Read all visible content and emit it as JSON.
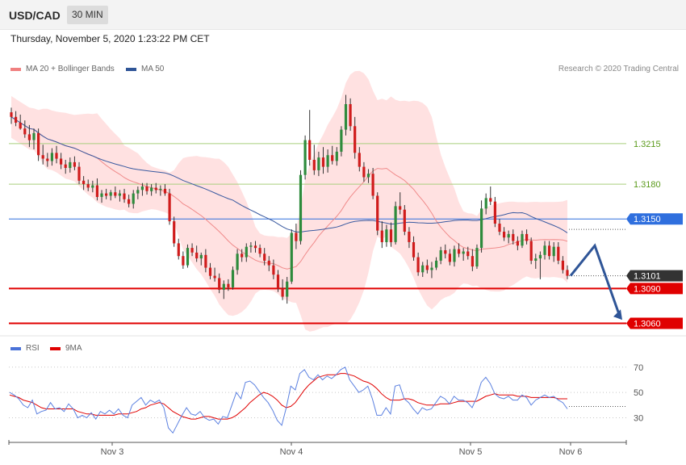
{
  "header": {
    "symbol": "USD/CAD",
    "timeframe": "30 MIN"
  },
  "datetime": "Thursday, November 5, 2020 1:23:22 PM CET",
  "legend": {
    "items": [
      {
        "label": "MA 20 + Bollinger Bands",
        "color": "#f08080"
      },
      {
        "label": "MA 50",
        "color": "#2f5597"
      }
    ],
    "rsi_items": [
      {
        "label": "RSI",
        "color": "#4a72d8"
      },
      {
        "label": "9MA",
        "color": "#e00000"
      }
    ]
  },
  "credit": "Research © 2020 Trading Central",
  "chart_data": [
    {
      "type": "candlestick",
      "symbol": "USD/CAD",
      "ylim": [
        1.3052,
        1.3272
      ],
      "x_labels": [
        "Nov 3",
        "Nov 4",
        "Nov 5",
        "Nov 6"
      ],
      "levels": [
        {
          "label": "1.3215",
          "value": 1.3215,
          "style": "resistance",
          "color": "#7fb539"
        },
        {
          "label": "1.3180",
          "value": 1.318,
          "style": "resistance",
          "color": "#7fb539"
        },
        {
          "label": "1.3150",
          "value": 1.315,
          "style": "pivot",
          "color": "#2f6fde"
        },
        {
          "label": "1.3101",
          "value": 1.3101,
          "style": "last-price",
          "color": "#333333"
        },
        {
          "label": "1.3090",
          "value": 1.309,
          "style": "support",
          "color": "#e00000"
        },
        {
          "label": "1.3060",
          "value": 1.306,
          "style": "support",
          "color": "#e00000"
        }
      ],
      "ohlc": [
        [
          1.3242,
          1.3246,
          1.3232,
          1.3238
        ],
        [
          1.3238,
          1.3243,
          1.323,
          1.3233
        ],
        [
          1.3233,
          1.324,
          1.3227,
          1.3228
        ],
        [
          1.3228,
          1.3235,
          1.322,
          1.3223
        ],
        [
          1.3223,
          1.3231,
          1.3212,
          1.3218
        ],
        [
          1.3218,
          1.3228,
          1.321,
          1.3224
        ],
        [
          1.3224,
          1.3228,
          1.32,
          1.3205
        ],
        [
          1.3205,
          1.3214,
          1.3197,
          1.3202
        ],
        [
          1.3202,
          1.3207,
          1.3195,
          1.32
        ],
        [
          1.32,
          1.3211,
          1.3196,
          1.3207
        ],
        [
          1.3207,
          1.3213,
          1.3198,
          1.3202
        ],
        [
          1.3202,
          1.3207,
          1.3193,
          1.3197
        ],
        [
          1.3197,
          1.3201,
          1.3189,
          1.3194
        ],
        [
          1.3194,
          1.3203,
          1.319,
          1.3199
        ],
        [
          1.3199,
          1.3204,
          1.3192,
          1.3195
        ],
        [
          1.3195,
          1.3199,
          1.318,
          1.3183
        ],
        [
          1.3183,
          1.3187,
          1.3175,
          1.318
        ],
        [
          1.318,
          1.3184,
          1.3174,
          1.3177
        ],
        [
          1.3177,
          1.3183,
          1.3173,
          1.3179
        ],
        [
          1.3179,
          1.3185,
          1.3166,
          1.3169
        ],
        [
          1.3169,
          1.3175,
          1.3164,
          1.3172
        ],
        [
          1.3172,
          1.3176,
          1.3167,
          1.317
        ],
        [
          1.317,
          1.3175,
          1.3166,
          1.3173
        ],
        [
          1.3173,
          1.3178,
          1.3168,
          1.317
        ],
        [
          1.317,
          1.3175,
          1.3165,
          1.3172
        ],
        [
          1.3172,
          1.3176,
          1.3164,
          1.3167
        ],
        [
          1.3167,
          1.3171,
          1.316,
          1.3163
        ],
        [
          1.3163,
          1.3175,
          1.3159,
          1.3172
        ],
        [
          1.3172,
          1.3178,
          1.3167,
          1.3175
        ],
        [
          1.3175,
          1.3181,
          1.317,
          1.3178
        ],
        [
          1.3178,
          1.3181,
          1.3171,
          1.3174
        ],
        [
          1.3174,
          1.318,
          1.317,
          1.3177
        ],
        [
          1.3177,
          1.3181,
          1.3172,
          1.3175
        ],
        [
          1.3175,
          1.3179,
          1.317,
          1.3176
        ],
        [
          1.3176,
          1.318,
          1.317,
          1.3172
        ],
        [
          1.3172,
          1.3176,
          1.3145,
          1.3148
        ],
        [
          1.3148,
          1.3152,
          1.3126,
          1.3129
        ],
        [
          1.3129,
          1.3133,
          1.3115,
          1.3118
        ],
        [
          1.3118,
          1.3122,
          1.3107,
          1.311
        ],
        [
          1.311,
          1.3128,
          1.3108,
          1.3125
        ],
        [
          1.3125,
          1.3129,
          1.3118,
          1.3121
        ],
        [
          1.3121,
          1.3127,
          1.3113,
          1.3116
        ],
        [
          1.3116,
          1.3121,
          1.311,
          1.3119
        ],
        [
          1.3119,
          1.3124,
          1.3104,
          1.3108
        ],
        [
          1.3108,
          1.3112,
          1.3098,
          1.3101
        ],
        [
          1.3101,
          1.3108,
          1.3096,
          1.3099
        ],
        [
          1.3099,
          1.3103,
          1.3086,
          1.3089
        ],
        [
          1.3089,
          1.3097,
          1.3081,
          1.3094
        ],
        [
          1.3094,
          1.3098,
          1.3088,
          1.3091
        ],
        [
          1.3091,
          1.3109,
          1.3089,
          1.3106
        ],
        [
          1.3106,
          1.3124,
          1.3102,
          1.312
        ],
        [
          1.312,
          1.3124,
          1.3113,
          1.3117
        ],
        [
          1.3117,
          1.3129,
          1.3113,
          1.3126
        ],
        [
          1.3126,
          1.313,
          1.3121,
          1.3127
        ],
        [
          1.3127,
          1.3131,
          1.3121,
          1.3125
        ],
        [
          1.3125,
          1.3128,
          1.3117,
          1.312
        ],
        [
          1.312,
          1.3125,
          1.311,
          1.3114
        ],
        [
          1.3114,
          1.3118,
          1.3105,
          1.311
        ],
        [
          1.311,
          1.3115,
          1.3098,
          1.3102
        ],
        [
          1.3102,
          1.3106,
          1.3087,
          1.309
        ],
        [
          1.309,
          1.3098,
          1.308,
          1.3083
        ],
        [
          1.3083,
          1.31,
          1.3077,
          1.3096
        ],
        [
          1.3096,
          1.3141,
          1.3094,
          1.3138
        ],
        [
          1.3138,
          1.3146,
          1.3124,
          1.3131
        ],
        [
          1.3131,
          1.3192,
          1.3128,
          1.3188
        ],
        [
          1.3188,
          1.3222,
          1.3184,
          1.3218
        ],
        [
          1.3218,
          1.3244,
          1.3196,
          1.3201
        ],
        [
          1.3201,
          1.3214,
          1.3188,
          1.3192
        ],
        [
          1.3192,
          1.3208,
          1.3187,
          1.3203
        ],
        [
          1.3203,
          1.3212,
          1.3189,
          1.3195
        ],
        [
          1.3195,
          1.321,
          1.319,
          1.3205
        ],
        [
          1.3205,
          1.3213,
          1.3197,
          1.32
        ],
        [
          1.32,
          1.3212,
          1.3196,
          1.3208
        ],
        [
          1.3208,
          1.323,
          1.3204,
          1.3227
        ],
        [
          1.3227,
          1.3257,
          1.3222,
          1.3249
        ],
        [
          1.3249,
          1.3254,
          1.3226,
          1.323
        ],
        [
          1.323,
          1.3238,
          1.3202,
          1.3207
        ],
        [
          1.3207,
          1.3212,
          1.3191,
          1.3195
        ],
        [
          1.3195,
          1.3199,
          1.3182,
          1.3186
        ],
        [
          1.3186,
          1.3193,
          1.3181,
          1.3189
        ],
        [
          1.3189,
          1.3194,
          1.3167,
          1.317
        ],
        [
          1.317,
          1.3173,
          1.3136,
          1.314
        ],
        [
          1.314,
          1.3148,
          1.3125,
          1.313
        ],
        [
          1.313,
          1.3145,
          1.3126,
          1.3141
        ],
        [
          1.3141,
          1.3147,
          1.3126,
          1.313
        ],
        [
          1.313,
          1.3165,
          1.3128,
          1.3161
        ],
        [
          1.3161,
          1.3173,
          1.3154,
          1.3158
        ],
        [
          1.3158,
          1.3162,
          1.3136,
          1.3139
        ],
        [
          1.3139,
          1.3143,
          1.3125,
          1.313
        ],
        [
          1.313,
          1.3135,
          1.3114,
          1.3117
        ],
        [
          1.3117,
          1.3121,
          1.3101,
          1.3104
        ],
        [
          1.3104,
          1.3113,
          1.31,
          1.311
        ],
        [
          1.311,
          1.3115,
          1.3103,
          1.3106
        ],
        [
          1.3106,
          1.3113,
          1.3099,
          1.3108
        ],
        [
          1.3108,
          1.3117,
          1.3106,
          1.3114
        ],
        [
          1.3114,
          1.3126,
          1.3111,
          1.3123
        ],
        [
          1.3123,
          1.3128,
          1.3116,
          1.312
        ],
        [
          1.312,
          1.3124,
          1.311,
          1.3113
        ],
        [
          1.3113,
          1.3127,
          1.3109,
          1.3124
        ],
        [
          1.3124,
          1.3129,
          1.3117,
          1.312
        ],
        [
          1.312,
          1.3125,
          1.3114,
          1.3122
        ],
        [
          1.3122,
          1.3126,
          1.3115,
          1.3118
        ],
        [
          1.3118,
          1.3124,
          1.3105,
          1.3109
        ],
        [
          1.3109,
          1.3128,
          1.3107,
          1.3125
        ],
        [
          1.3125,
          1.3166,
          1.3121,
          1.3159
        ],
        [
          1.3159,
          1.3172,
          1.3154,
          1.3168
        ],
        [
          1.3168,
          1.3178,
          1.3162,
          1.3165
        ],
        [
          1.3165,
          1.3169,
          1.3143,
          1.3146
        ],
        [
          1.3146,
          1.315,
          1.3136,
          1.3139
        ],
        [
          1.3139,
          1.3143,
          1.3131,
          1.3134
        ],
        [
          1.3134,
          1.314,
          1.3129,
          1.3137
        ],
        [
          1.3137,
          1.3141,
          1.3128,
          1.3131
        ],
        [
          1.3131,
          1.3135,
          1.3123,
          1.3127
        ],
        [
          1.3127,
          1.314,
          1.3125,
          1.3137
        ],
        [
          1.3137,
          1.3141,
          1.3128,
          1.3131
        ],
        [
          1.3131,
          1.3134,
          1.3111,
          1.3114
        ],
        [
          1.3114,
          1.312,
          1.3107,
          1.3116
        ],
        [
          1.3116,
          1.3122,
          1.3098,
          1.3119
        ],
        [
          1.3119,
          1.3131,
          1.3115,
          1.3127
        ],
        [
          1.3127,
          1.3131,
          1.3115,
          1.3118
        ],
        [
          1.3118,
          1.313,
          1.3113,
          1.3126
        ],
        [
          1.3126,
          1.313,
          1.3111,
          1.3114
        ],
        [
          1.3114,
          1.3118,
          1.3103,
          1.3106
        ],
        [
          1.3106,
          1.311,
          1.3098,
          1.3101
        ]
      ],
      "forecast_arrow": [
        [
          1.3101,
          "last"
        ],
        [
          1.3127,
          "peak"
        ],
        [
          1.3063,
          "target"
        ]
      ]
    },
    {
      "type": "line",
      "indicator": "RSI",
      "ylim": [
        15,
        82
      ],
      "y_ticks": [
        "70",
        "50",
        "30"
      ],
      "rsi": [
        50,
        48,
        45,
        40,
        38,
        44,
        33,
        35,
        36,
        42,
        37,
        38,
        35,
        41,
        37,
        30,
        32,
        30,
        34,
        29,
        35,
        33,
        36,
        33,
        37,
        32,
        30,
        40,
        43,
        46,
        40,
        44,
        42,
        44,
        38,
        22,
        18,
        25,
        32,
        38,
        33,
        32,
        35,
        30,
        28,
        29,
        25,
        31,
        30,
        40,
        50,
        45,
        58,
        59,
        56,
        51,
        46,
        42,
        36,
        28,
        24,
        38,
        55,
        52,
        65,
        68,
        62,
        60,
        64,
        60,
        63,
        61,
        64,
        68,
        70,
        60,
        55,
        50,
        52,
        55,
        45,
        32,
        32,
        38,
        33,
        55,
        56,
        45,
        42,
        37,
        33,
        38,
        36,
        37,
        42,
        47,
        45,
        41,
        47,
        44,
        44,
        42,
        38,
        46,
        58,
        62,
        57,
        49,
        46,
        45,
        47,
        44,
        44,
        48,
        46,
        40,
        44,
        46,
        48,
        46,
        47,
        44,
        42,
        37
      ],
      "ma9": [
        48,
        47,
        46,
        44,
        43,
        42,
        40,
        38,
        37,
        37,
        37,
        37,
        37,
        37,
        37,
        35,
        34,
        33,
        33,
        32,
        32,
        32,
        32,
        32,
        33,
        33,
        33,
        34,
        35,
        37,
        38,
        40,
        41,
        42,
        41,
        38,
        35,
        33,
        31,
        30,
        29,
        29,
        30,
        31,
        31,
        30,
        29,
        29,
        29,
        30,
        32,
        35,
        38,
        42,
        45,
        48,
        50,
        49,
        47,
        44,
        40,
        38,
        39,
        42,
        47,
        52,
        56,
        59,
        62,
        63,
        64,
        64,
        64,
        65,
        65,
        64,
        63,
        61,
        59,
        58,
        56,
        53,
        49,
        46,
        44,
        44,
        44,
        45,
        45,
        44,
        42,
        41,
        40,
        40,
        40,
        41,
        41,
        41,
        42,
        43,
        43,
        43,
        43,
        43,
        45,
        47,
        48,
        49,
        48,
        48,
        48,
        48,
        47,
        47,
        47,
        46,
        46,
        46,
        46,
        46,
        46,
        45,
        45,
        45
      ]
    }
  ]
}
